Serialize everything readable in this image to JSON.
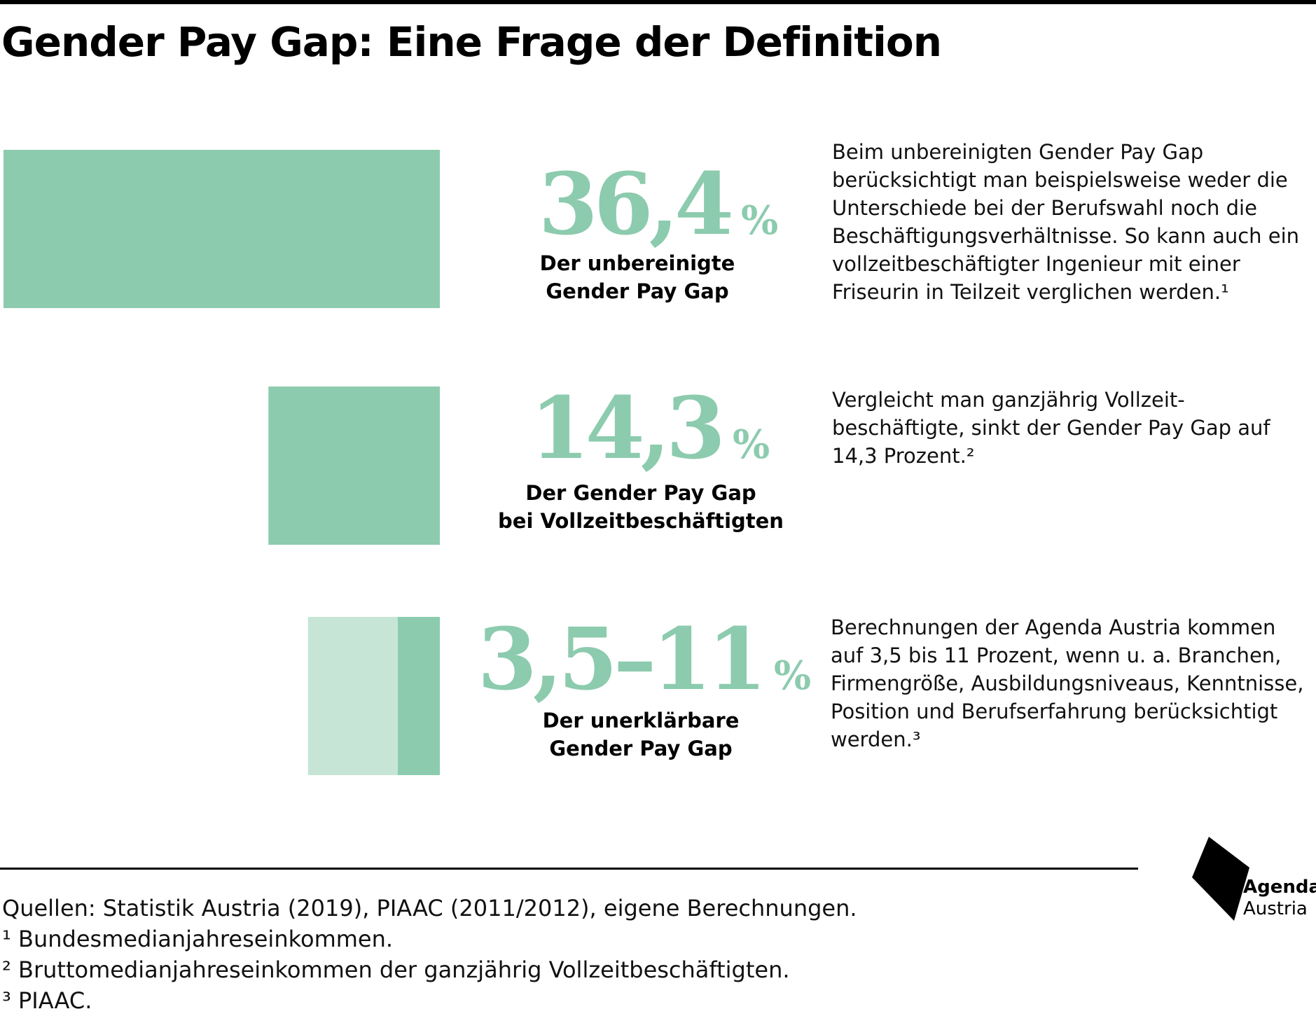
{
  "title": "Gender Pay Gap: Eine Frage der Definition",
  "colors": {
    "bar": "#8ccbae",
    "bar_light": "#c6e5d6",
    "text": "#111111"
  },
  "chart_data": {
    "type": "bar",
    "orientation": "horizontal",
    "unit": "%",
    "categories": [
      "Der unbereinigte Gender Pay Gap",
      "Der Gender Pay Gap bei Vollzeitbeschäftigten",
      "Der unerklärbare Gender Pay Gap"
    ],
    "values": [
      36.4,
      14.3,
      11
    ],
    "ranges": [
      null,
      null,
      [
        3.5,
        11
      ]
    ]
  },
  "items": [
    {
      "value": "36,4",
      "unit": "%",
      "caption_line1": "Der unbereinigte",
      "caption_line2": "Gender Pay Gap",
      "description": "Beim unbereinigten Gender Pay Gap berücksichtigt man beispielsweise weder die Unterschiede bei der Berufswahl noch die Beschäftigungsverhältnisse. So kann auch ein vollzeitbeschäftigter Ingenieur mit einer Friseurin in Teilzeit verglichen werden.¹"
    },
    {
      "value": "14,3",
      "unit": "%",
      "caption_line1": "Der Gender Pay Gap",
      "caption_line2": "bei Vollzeitbeschäftigten",
      "description": "Vergleicht man ganzjährig Vollzeit-beschäftigte, sinkt der Gender Pay Gap auf 14,3 Prozent.²"
    },
    {
      "value": "3,5–11",
      "unit": "%",
      "caption_line1": "Der unerklärbare",
      "caption_line2": "Gender Pay Gap",
      "description": "Berechnungen der Agenda Austria kommen auf 3,5 bis 11 Prozent, wenn u. a. Branchen, Firmengröße, Ausbildungsniveaus, Kenntnisse, Position und Berufserfahrung berücksichtigt werden.³"
    }
  ],
  "sources": {
    "main": "Quellen: Statistik Austria (2019), PIAAC (2011/2012), eigene Berechnungen.",
    "note1": "¹ Bundesmedianjahreseinkommen.",
    "note2": "² Bruttomedianjahreseinkommen der ganzjährig Vollzeitbeschäftigten.",
    "note3": "³ PIAAC."
  },
  "logo": {
    "name": "Agenda",
    "sub": "Austria"
  }
}
